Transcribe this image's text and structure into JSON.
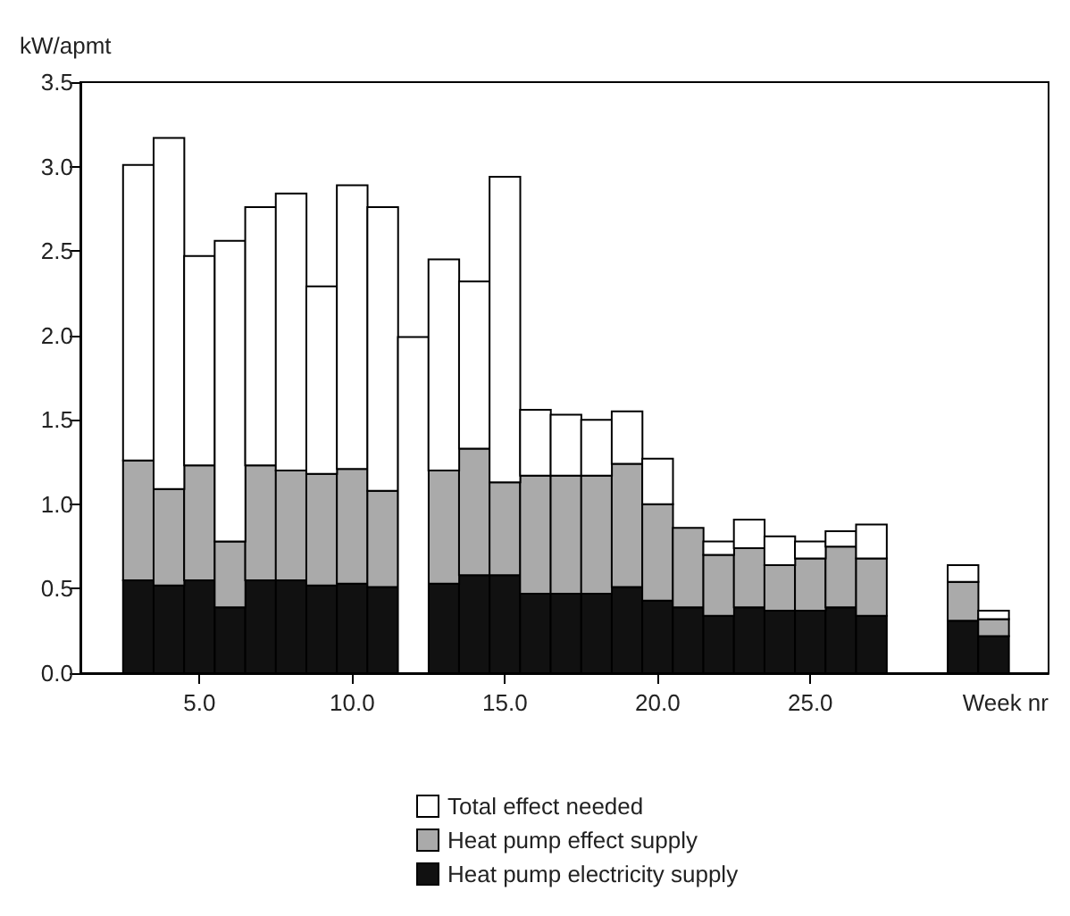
{
  "chart_data": {
    "type": "bar",
    "xlabel": "Week nr",
    "ylabel": "kW/apmt",
    "stacked": true,
    "legend": "bottom",
    "x": [
      3,
      4,
      5,
      6,
      7,
      8,
      9,
      10,
      11,
      12,
      13,
      14,
      15,
      16,
      17,
      18,
      19,
      20,
      21,
      22,
      23,
      24,
      25,
      26,
      27,
      30,
      31
    ],
    "series": [
      {
        "name": "Heat pump electricity supply",
        "color": "#111111",
        "values": [
          0.55,
          0.52,
          0.55,
          0.39,
          0.55,
          0.55,
          0.52,
          0.53,
          0.51,
          null,
          0.53,
          0.58,
          0.58,
          0.47,
          0.47,
          0.47,
          0.51,
          0.43,
          0.39,
          0.34,
          0.39,
          0.37,
          0.37,
          0.39,
          0.34,
          0.31,
          0.22
        ]
      },
      {
        "name": "Heat pump effect supply",
        "color": "#aaaaaa",
        "values": [
          0.71,
          0.57,
          0.68,
          0.39,
          0.68,
          0.65,
          0.66,
          0.68,
          0.57,
          null,
          0.67,
          0.75,
          0.55,
          0.7,
          0.7,
          0.7,
          0.73,
          0.57,
          0.47,
          0.36,
          0.35,
          0.27,
          0.31,
          0.36,
          0.34,
          0.23,
          0.1
        ]
      },
      {
        "name": "Total effect needed",
        "color": "#ffffff",
        "values": [
          1.75,
          2.08,
          1.24,
          1.78,
          1.53,
          1.64,
          1.11,
          1.68,
          1.68,
          1.99,
          1.25,
          0.99,
          1.81,
          0.39,
          0.36,
          0.33,
          0.31,
          0.27,
          null,
          0.08,
          0.17,
          0.17,
          0.1,
          0.09,
          0.2,
          0.1,
          0.05
        ]
      }
    ],
    "xlim": [
      1.1,
      32.8
    ],
    "ylim": [
      0,
      3.5
    ],
    "xticks": [
      {
        "value": 5,
        "label": "5.0"
      },
      {
        "value": 10,
        "label": "10.0"
      },
      {
        "value": 15,
        "label": "15.0"
      },
      {
        "value": 20,
        "label": "20.0"
      },
      {
        "value": 25,
        "label": "25.0"
      }
    ],
    "yticks": [
      {
        "value": 0,
        "label": "0.0"
      },
      {
        "value": 0.5,
        "label": "0.5"
      },
      {
        "value": 1,
        "label": "1.0"
      },
      {
        "value": 1.5,
        "label": "1.5"
      },
      {
        "value": 2,
        "label": "2.0"
      },
      {
        "value": 2.5,
        "label": "2.5"
      },
      {
        "value": 3,
        "label": "3.0"
      },
      {
        "value": 3.5,
        "label": "3.5"
      }
    ]
  }
}
